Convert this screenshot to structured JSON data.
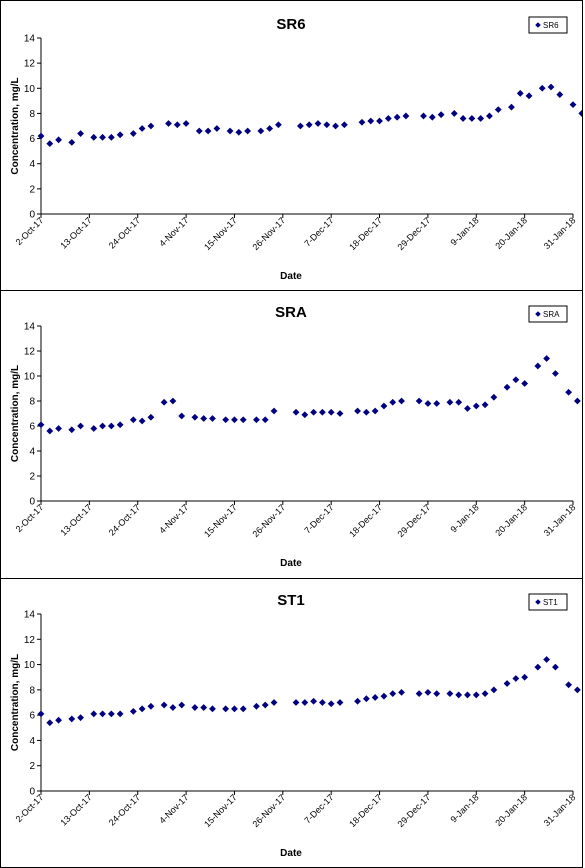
{
  "chart_data": [
    {
      "type": "scatter",
      "title": "SR6",
      "xlabel": "Date",
      "ylabel": "Concentration, mg/L",
      "ylim": [
        0,
        14
      ],
      "yticks": [
        "0",
        "2",
        "4",
        "6",
        "8",
        "10",
        "12",
        "14"
      ],
      "xlim": [
        "2017-10-02",
        "2018-01-31"
      ],
      "xticks": [
        {
          "date": "2017-10-02",
          "label": "2-Oct-17"
        },
        {
          "date": "2017-10-13",
          "label": "13-Oct-17"
        },
        {
          "date": "2017-10-24",
          "label": "24-Oct-17"
        },
        {
          "date": "2017-11-04",
          "label": "4-Nov-17"
        },
        {
          "date": "2017-11-15",
          "label": "15-Nov-17"
        },
        {
          "date": "2017-11-26",
          "label": "26-Nov-17"
        },
        {
          "date": "2017-12-07",
          "label": "7-Dec-17"
        },
        {
          "date": "2017-12-18",
          "label": "18-Dec-17"
        },
        {
          "date": "2017-12-29",
          "label": "29-Dec-17"
        },
        {
          "date": "2018-01-09",
          "label": "9-Jan-18"
        },
        {
          "date": "2018-01-20",
          "label": "20-Jan-18"
        },
        {
          "date": "2018-01-31",
          "label": "31-Jan-18"
        }
      ],
      "legend": {
        "position": "top-right"
      },
      "series": [
        {
          "name": "SR6",
          "color": "#000080",
          "x": [
            "2017-10-02",
            "2017-10-04",
            "2017-10-06",
            "2017-10-09",
            "2017-10-11",
            "2017-10-14",
            "2017-10-16",
            "2017-10-18",
            "2017-10-20",
            "2017-10-23",
            "2017-10-25",
            "2017-10-27",
            "2017-10-31",
            "2017-11-02",
            "2017-11-04",
            "2017-11-07",
            "2017-11-09",
            "2017-11-11",
            "2017-11-14",
            "2017-11-16",
            "2017-11-18",
            "2017-11-21",
            "2017-11-23",
            "2017-11-25",
            "2017-11-30",
            "2017-12-02",
            "2017-12-04",
            "2017-12-06",
            "2017-12-08",
            "2017-12-10",
            "2017-12-14",
            "2017-12-16",
            "2017-12-18",
            "2017-12-20",
            "2017-12-22",
            "2017-12-24",
            "2017-12-28",
            "2017-12-30",
            "2018-01-01",
            "2018-01-04",
            "2018-01-06",
            "2018-01-08",
            "2018-01-10",
            "2018-01-12",
            "2018-01-14",
            "2018-01-17",
            "2018-01-19",
            "2018-01-21",
            "2018-01-24",
            "2018-01-26",
            "2018-01-28",
            "2018-01-31",
            "2018-02-02"
          ],
          "y": [
            6.2,
            5.6,
            5.9,
            5.7,
            6.4,
            6.1,
            6.1,
            6.1,
            6.3,
            6.4,
            6.8,
            7.0,
            7.2,
            7.1,
            7.2,
            6.6,
            6.6,
            6.8,
            6.6,
            6.5,
            6.6,
            6.6,
            6.8,
            7.1,
            7.0,
            7.1,
            7.2,
            7.1,
            7.0,
            7.1,
            7.3,
            7.4,
            7.4,
            7.6,
            7.7,
            7.8,
            7.8,
            7.7,
            7.9,
            8.0,
            7.6,
            7.6,
            7.6,
            7.8,
            8.3,
            8.5,
            9.6,
            9.4,
            10.0,
            10.1,
            9.5,
            8.7,
            8.0
          ]
        }
      ]
    },
    {
      "type": "scatter",
      "title": "SRA",
      "xlabel": "Date",
      "ylabel": "Concentration, mg/L",
      "ylim": [
        0,
        14
      ],
      "yticks": [
        "0",
        "2",
        "4",
        "6",
        "8",
        "10",
        "12",
        "14"
      ],
      "xlim": [
        "2017-10-02",
        "2018-01-31"
      ],
      "xticks": [
        {
          "date": "2017-10-02",
          "label": "2-Oct-17"
        },
        {
          "date": "2017-10-13",
          "label": "13-Oct-17"
        },
        {
          "date": "2017-10-24",
          "label": "24-Oct-17"
        },
        {
          "date": "2017-11-04",
          "label": "4-Nov-17"
        },
        {
          "date": "2017-11-15",
          "label": "15-Nov-17"
        },
        {
          "date": "2017-11-26",
          "label": "26-Nov-17"
        },
        {
          "date": "2017-12-07",
          "label": "7-Dec-17"
        },
        {
          "date": "2017-12-18",
          "label": "18-Dec-17"
        },
        {
          "date": "2017-12-29",
          "label": "29-Dec-17"
        },
        {
          "date": "2018-01-09",
          "label": "9-Jan-18"
        },
        {
          "date": "2018-01-20",
          "label": "20-Jan-18"
        },
        {
          "date": "2018-01-31",
          "label": "31-Jan-18"
        }
      ],
      "legend": {
        "position": "top-right"
      },
      "series": [
        {
          "name": "SRA",
          "color": "#000080",
          "x": [
            "2017-10-02",
            "2017-10-04",
            "2017-10-06",
            "2017-10-09",
            "2017-10-11",
            "2017-10-14",
            "2017-10-16",
            "2017-10-18",
            "2017-10-20",
            "2017-10-23",
            "2017-10-25",
            "2017-10-27",
            "2017-10-30",
            "2017-11-01",
            "2017-11-03",
            "2017-11-06",
            "2017-11-08",
            "2017-11-10",
            "2017-11-13",
            "2017-11-15",
            "2017-11-17",
            "2017-11-20",
            "2017-11-22",
            "2017-11-24",
            "2017-11-29",
            "2017-12-01",
            "2017-12-03",
            "2017-12-05",
            "2017-12-07",
            "2017-12-09",
            "2017-12-13",
            "2017-12-15",
            "2017-12-17",
            "2017-12-19",
            "2017-12-21",
            "2017-12-23",
            "2017-12-27",
            "2017-12-29",
            "2017-12-31",
            "2018-01-03",
            "2018-01-05",
            "2018-01-07",
            "2018-01-09",
            "2018-01-11",
            "2018-01-13",
            "2018-01-16",
            "2018-01-18",
            "2018-01-20",
            "2018-01-23",
            "2018-01-25",
            "2018-01-27",
            "2018-01-30",
            "2018-02-01"
          ],
          "y": [
            6.1,
            5.6,
            5.8,
            5.7,
            6.0,
            5.8,
            6.0,
            6.0,
            6.1,
            6.5,
            6.4,
            6.7,
            7.9,
            8.0,
            6.8,
            6.7,
            6.6,
            6.6,
            6.5,
            6.5,
            6.5,
            6.5,
            6.5,
            7.2,
            7.1,
            6.9,
            7.1,
            7.1,
            7.1,
            7.0,
            7.2,
            7.1,
            7.2,
            7.6,
            7.9,
            8.0,
            8.0,
            7.8,
            7.8,
            7.9,
            7.9,
            7.4,
            7.6,
            7.7,
            8.3,
            9.1,
            9.7,
            9.4,
            10.8,
            11.4,
            10.2,
            8.7,
            8.0
          ]
        }
      ]
    },
    {
      "type": "scatter",
      "title": "ST1",
      "xlabel": "Date",
      "ylabel": "Concentration, mg/L",
      "ylim": [
        0,
        14
      ],
      "yticks": [
        "0",
        "2",
        "4",
        "6",
        "8",
        "10",
        "12",
        "14"
      ],
      "xlim": [
        "2017-10-02",
        "2018-01-31"
      ],
      "xticks": [
        {
          "date": "2017-10-02",
          "label": "2-Oct-17"
        },
        {
          "date": "2017-10-13",
          "label": "13-Oct-17"
        },
        {
          "date": "2017-10-24",
          "label": "24-Oct-17"
        },
        {
          "date": "2017-11-04",
          "label": "4-Nov-17"
        },
        {
          "date": "2017-11-15",
          "label": "15-Nov-17"
        },
        {
          "date": "2017-11-26",
          "label": "26-Nov-17"
        },
        {
          "date": "2017-12-07",
          "label": "7-Dec-17"
        },
        {
          "date": "2017-12-18",
          "label": "18-Dec-17"
        },
        {
          "date": "2017-12-29",
          "label": "29-Dec-17"
        },
        {
          "date": "2018-01-09",
          "label": "9-Jan-18"
        },
        {
          "date": "2018-01-20",
          "label": "20-Jan-18"
        },
        {
          "date": "2018-01-31",
          "label": "31-Jan-18"
        }
      ],
      "legend": {
        "position": "top-right"
      },
      "series": [
        {
          "name": "ST1",
          "color": "#000080",
          "x": [
            "2017-10-02",
            "2017-10-04",
            "2017-10-06",
            "2017-10-09",
            "2017-10-11",
            "2017-10-14",
            "2017-10-16",
            "2017-10-18",
            "2017-10-20",
            "2017-10-23",
            "2017-10-25",
            "2017-10-27",
            "2017-10-30",
            "2017-11-01",
            "2017-11-03",
            "2017-11-06",
            "2017-11-08",
            "2017-11-10",
            "2017-11-13",
            "2017-11-15",
            "2017-11-17",
            "2017-11-20",
            "2017-11-22",
            "2017-11-24",
            "2017-11-29",
            "2017-12-01",
            "2017-12-03",
            "2017-12-05",
            "2017-12-07",
            "2017-12-09",
            "2017-12-13",
            "2017-12-15",
            "2017-12-17",
            "2017-12-19",
            "2017-12-21",
            "2017-12-23",
            "2017-12-27",
            "2017-12-29",
            "2017-12-31",
            "2018-01-03",
            "2018-01-05",
            "2018-01-07",
            "2018-01-09",
            "2018-01-11",
            "2018-01-13",
            "2018-01-16",
            "2018-01-18",
            "2018-01-20",
            "2018-01-23",
            "2018-01-25",
            "2018-01-27",
            "2018-01-30",
            "2018-02-01"
          ],
          "y": [
            6.1,
            5.4,
            5.6,
            5.7,
            5.8,
            6.1,
            6.1,
            6.1,
            6.1,
            6.3,
            6.5,
            6.7,
            6.8,
            6.6,
            6.8,
            6.6,
            6.6,
            6.5,
            6.5,
            6.5,
            6.5,
            6.7,
            6.8,
            7.0,
            7.0,
            7.0,
            7.1,
            7.0,
            6.9,
            7.0,
            7.1,
            7.3,
            7.4,
            7.5,
            7.7,
            7.8,
            7.7,
            7.8,
            7.7,
            7.7,
            7.6,
            7.6,
            7.6,
            7.7,
            8.0,
            8.5,
            8.9,
            9.0,
            9.8,
            10.4,
            9.8,
            8.4,
            8.0
          ]
        }
      ]
    }
  ]
}
